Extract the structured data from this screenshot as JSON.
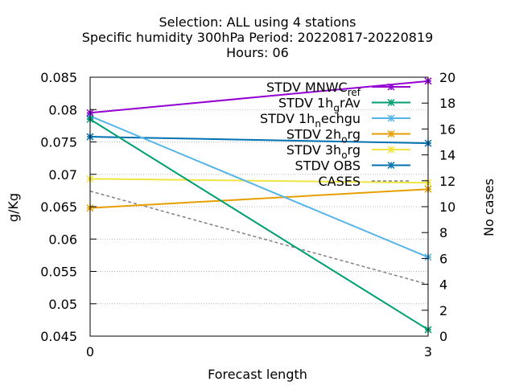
{
  "chart_data": {
    "type": "line",
    "title_lines": [
      "Selection: ALL using     4 stations",
      "Specific humidity 300hPa   Period: 20220817-20220819",
      "Hours:  06"
    ],
    "xlabel": "Forecast length",
    "ylabel": "g/Kg",
    "y2label": "No cases",
    "x": [
      0,
      3
    ],
    "xlim": [
      0,
      3
    ],
    "ylim": [
      0.045,
      0.085
    ],
    "y2lim": [
      0,
      20
    ],
    "x_ticks": [
      "0",
      "3"
    ],
    "y_ticks": [
      "0.045",
      "0.05",
      "0.055",
      "0.06",
      "0.065",
      "0.07",
      "0.075",
      "0.08",
      "0.085"
    ],
    "y2_ticks": [
      "0",
      "2",
      "4",
      "6",
      "8",
      "10",
      "12",
      "14",
      "16",
      "18",
      "20"
    ],
    "grid": true,
    "legend_position": "top-right",
    "series": [
      {
        "name": "STDV MNWC",
        "name_sub": "ref",
        "color": "#9400d3",
        "axis": "y",
        "values": [
          0.0795,
          0.0844
        ]
      },
      {
        "name": "STDV 1h",
        "name_sub": "g",
        "name_tail": "rAv",
        "color": "#009e73",
        "axis": "y",
        "values": [
          0.0785,
          0.046
        ]
      },
      {
        "name": "STDV 1h",
        "name_sub": "n",
        "name_tail": "echgu",
        "color": "#56b4e9",
        "axis": "y",
        "values": [
          0.079,
          0.0572
        ]
      },
      {
        "name": "STDV 2h",
        "name_sub": "o",
        "name_tail": "rg",
        "color": "#e69f00",
        "axis": "y",
        "values": [
          0.0648,
          0.0677
        ]
      },
      {
        "name": "STDV 3h",
        "name_sub": "o",
        "name_tail": "rg",
        "color": "#f0e442",
        "axis": "y",
        "values": [
          0.0693,
          0.0687
        ]
      },
      {
        "name": "STDV OBS",
        "color": "#0072b2",
        "axis": "y",
        "values": [
          0.0758,
          0.0748
        ]
      },
      {
        "name": "CASES",
        "color": "#808080",
        "axis": "y2",
        "dashed": true,
        "values": [
          11.2,
          4.0
        ]
      }
    ]
  }
}
